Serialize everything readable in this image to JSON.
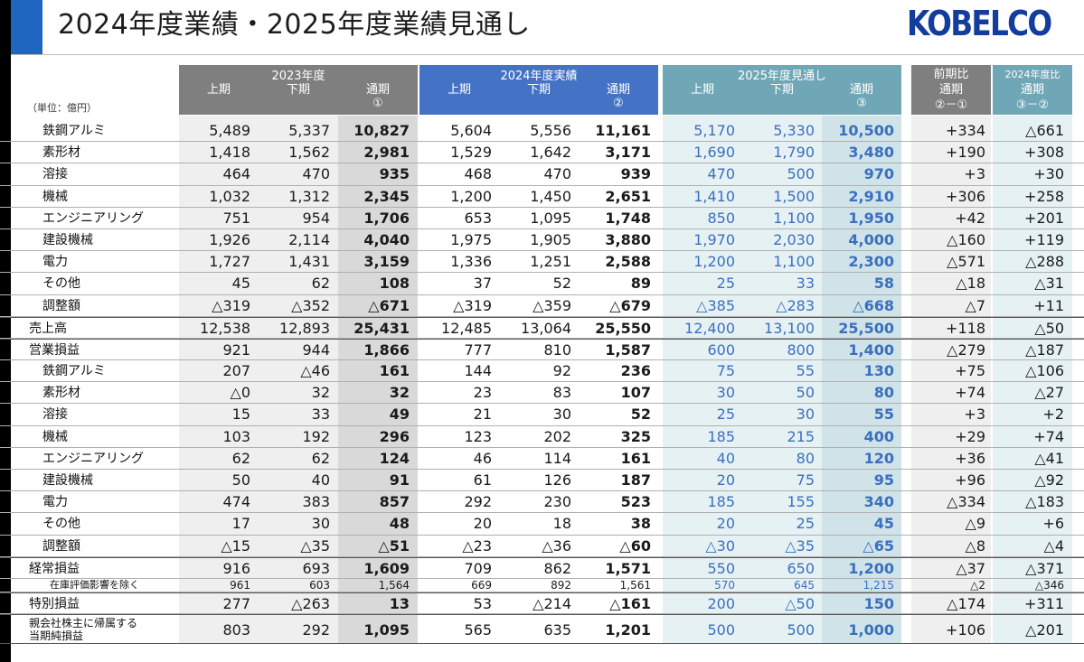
{
  "title": "2024年度業績・2025年度業績見通し",
  "logo_text": "KOBELCO",
  "unit_label": "（単位：億円）",
  "headers": {
    "fy2023": {
      "group": "2023年度",
      "cols": [
        "上期",
        "下期",
        "通期",
        "①"
      ]
    },
    "fy2024": {
      "group": "2024年度実績",
      "cols": [
        "上期",
        "下期",
        "通期",
        "②"
      ]
    },
    "fy2025": {
      "group": "2025年度見通し",
      "cols": [
        "上期",
        "下期",
        "通期",
        "③"
      ]
    },
    "prev": {
      "group": "前期比",
      "sub1": "通期",
      "sub2": "②－①"
    },
    "diff": {
      "group": "2024年度比",
      "sub1": "通期",
      "sub2": "③－②"
    }
  },
  "colors": {
    "fy2023": "#7f7f7f",
    "fy2024": "#4472c4",
    "fy2025": "#6fa7b7",
    "forecast_text": "#3b6fbf"
  },
  "rows": [
    {
      "label": "鉄鋼アルミ",
      "values": [
        "5,489",
        "5,337",
        "10,827",
        "5,604",
        "5,556",
        "11,161",
        "5,170",
        "5,330",
        "10,500",
        "+334",
        "△661"
      ]
    },
    {
      "label": "素形材",
      "values": [
        "1,418",
        "1,562",
        "2,981",
        "1,529",
        "1,642",
        "3,171",
        "1,690",
        "1,790",
        "3,480",
        "+190",
        "+308"
      ]
    },
    {
      "label": "溶接",
      "values": [
        "464",
        "470",
        "935",
        "468",
        "470",
        "939",
        "470",
        "500",
        "970",
        "+3",
        "+30"
      ]
    },
    {
      "label": "機械",
      "values": [
        "1,032",
        "1,312",
        "2,345",
        "1,200",
        "1,450",
        "2,651",
        "1,410",
        "1,500",
        "2,910",
        "+306",
        "+258"
      ]
    },
    {
      "label": "エンジニアリング",
      "values": [
        "751",
        "954",
        "1,706",
        "653",
        "1,095",
        "1,748",
        "850",
        "1,100",
        "1,950",
        "+42",
        "+201"
      ]
    },
    {
      "label": "建設機械",
      "values": [
        "1,926",
        "2,114",
        "4,040",
        "1,975",
        "1,905",
        "3,880",
        "1,970",
        "2,030",
        "4,000",
        "△160",
        "+119"
      ]
    },
    {
      "label": "電力",
      "values": [
        "1,727",
        "1,431",
        "3,159",
        "1,336",
        "1,251",
        "2,588",
        "1,200",
        "1,100",
        "2,300",
        "△571",
        "△288"
      ]
    },
    {
      "label": "その他",
      "values": [
        "45",
        "62",
        "108",
        "37",
        "52",
        "89",
        "25",
        "33",
        "58",
        "△18",
        "△31"
      ]
    },
    {
      "label": "調整額",
      "values": [
        "△319",
        "△352",
        "△671",
        "△319",
        "△359",
        "△679",
        "△385",
        "△283",
        "△668",
        "△7",
        "+11"
      ]
    },
    {
      "label": "売上高",
      "values": [
        "12,538",
        "12,893",
        "25,431",
        "12,485",
        "13,064",
        "25,550",
        "12,400",
        "13,100",
        "25,500",
        "+118",
        "△50"
      ]
    },
    {
      "label": "営業損益",
      "values": [
        "921",
        "944",
        "1,866",
        "777",
        "810",
        "1,587",
        "600",
        "800",
        "1,400",
        "△279",
        "△187"
      ]
    },
    {
      "label": "鉄鋼アルミ",
      "values": [
        "207",
        "△46",
        "161",
        "144",
        "92",
        "236",
        "75",
        "55",
        "130",
        "+75",
        "△106"
      ]
    },
    {
      "label": "素形材",
      "values": [
        "△0",
        "32",
        "32",
        "23",
        "83",
        "107",
        "30",
        "50",
        "80",
        "+74",
        "△27"
      ]
    },
    {
      "label": "溶接",
      "values": [
        "15",
        "33",
        "49",
        "21",
        "30",
        "52",
        "25",
        "30",
        "55",
        "+3",
        "+2"
      ]
    },
    {
      "label": "機械",
      "values": [
        "103",
        "192",
        "296",
        "123",
        "202",
        "325",
        "185",
        "215",
        "400",
        "+29",
        "+74"
      ]
    },
    {
      "label": "エンジニアリング",
      "values": [
        "62",
        "62",
        "124",
        "46",
        "114",
        "161",
        "40",
        "80",
        "120",
        "+36",
        "△41"
      ]
    },
    {
      "label": "建設機械",
      "values": [
        "50",
        "40",
        "91",
        "61",
        "126",
        "187",
        "20",
        "75",
        "95",
        "+96",
        "△92"
      ]
    },
    {
      "label": "電力",
      "values": [
        "474",
        "383",
        "857",
        "292",
        "230",
        "523",
        "185",
        "155",
        "340",
        "△334",
        "△183"
      ]
    },
    {
      "label": "その他",
      "values": [
        "17",
        "30",
        "48",
        "20",
        "18",
        "38",
        "20",
        "25",
        "45",
        "△9",
        "+6"
      ]
    },
    {
      "label": "調整額",
      "values": [
        "△15",
        "△35",
        "△51",
        "△23",
        "△36",
        "△60",
        "△30",
        "△35",
        "△65",
        "△8",
        "△4"
      ]
    },
    {
      "label": "経常損益",
      "values": [
        "916",
        "693",
        "1,609",
        "709",
        "862",
        "1,571",
        "550",
        "650",
        "1,200",
        "△37",
        "△371"
      ]
    },
    {
      "label": "在庫評価影響を除く",
      "values": [
        "961",
        "603",
        "1,564",
        "669",
        "892",
        "1,561",
        "570",
        "645",
        "1,215",
        "△2",
        "△346"
      ]
    },
    {
      "label": "特別損益",
      "values": [
        "277",
        "△263",
        "13",
        "53",
        "△214",
        "△161",
        "200",
        "△50",
        "150",
        "△174",
        "+311"
      ]
    },
    {
      "label1": "親会社株主に帰属する",
      "label2": "当期純損益",
      "values": [
        "803",
        "292",
        "1,095",
        "565",
        "635",
        "1,201",
        "500",
        "500",
        "1,000",
        "+106",
        "△201"
      ]
    }
  ]
}
